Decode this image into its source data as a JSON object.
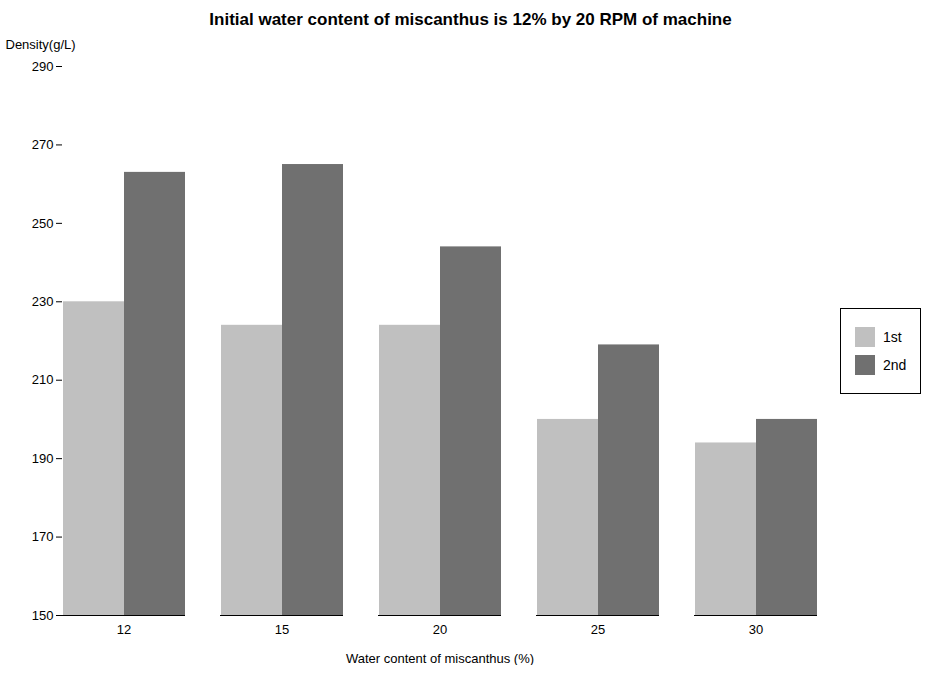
{
  "chart_data": {
    "type": "bar",
    "title": "Initial water content of miscanthus  is  12% by 20 RPM of machine",
    "xlabel": "Water content of miscanthus (%)",
    "ylabel": "Density(g/L)",
    "categories": [
      12,
      15,
      20,
      25,
      30
    ],
    "series": [
      {
        "name": "1st",
        "color": "#c0c0c0",
        "values": [
          230,
          224,
          224,
          200,
          194
        ]
      },
      {
        "name": "2nd",
        "color": "#707070",
        "values": [
          263,
          265,
          244,
          219,
          200
        ]
      }
    ],
    "ylim": [
      150,
      290
    ],
    "yticks": [
      150,
      170,
      190,
      210,
      230,
      250,
      270,
      290
    ],
    "grid": false,
    "legend": "right"
  }
}
